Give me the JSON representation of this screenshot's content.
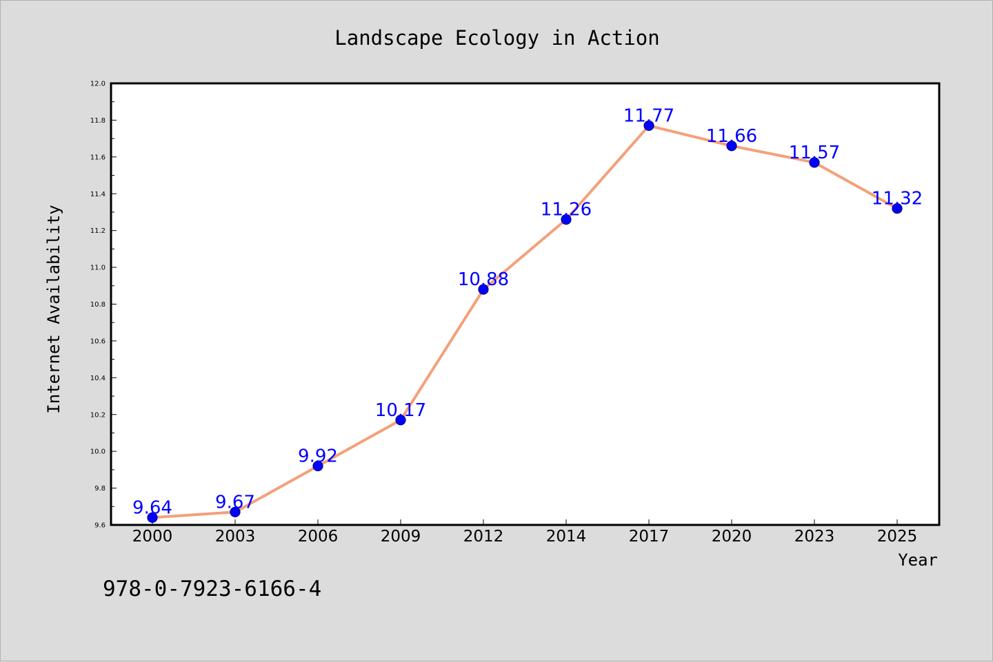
{
  "chart_data": {
    "type": "line",
    "title": "Landscape Ecology in Action",
    "xlabel": "Year",
    "ylabel": "Internet Availability",
    "categories": [
      "2000",
      "2003",
      "2006",
      "2009",
      "2012",
      "2014",
      "2017",
      "2020",
      "2023",
      "2025"
    ],
    "values": [
      9.64,
      9.67,
      9.92,
      10.17,
      10.88,
      11.26,
      11.77,
      11.66,
      11.57,
      11.32
    ],
    "data_labels": [
      "9.64",
      "9.67",
      "9.92",
      "10.17",
      "10.88",
      "11.26",
      "11.77",
      "11.66",
      "11.57",
      "11.32"
    ],
    "ylim": [
      9.6,
      12.0
    ],
    "yticks": [
      "9.6",
      "9.8",
      "10.0",
      "10.2",
      "10.4",
      "10.6",
      "10.8",
      "11.0",
      "11.2",
      "11.4",
      "11.6",
      "11.8",
      "12.0"
    ],
    "grid": false,
    "legend": "none",
    "colors": {
      "line": "#f4a07a",
      "marker": "#0000ff",
      "marker_edge": "#00008b",
      "data_label": "#0000ff",
      "plot_background": "#ffffff",
      "figure_background": "#dcdcdc"
    }
  },
  "annotation": {
    "isbn": "978-0-7923-6166-4"
  }
}
